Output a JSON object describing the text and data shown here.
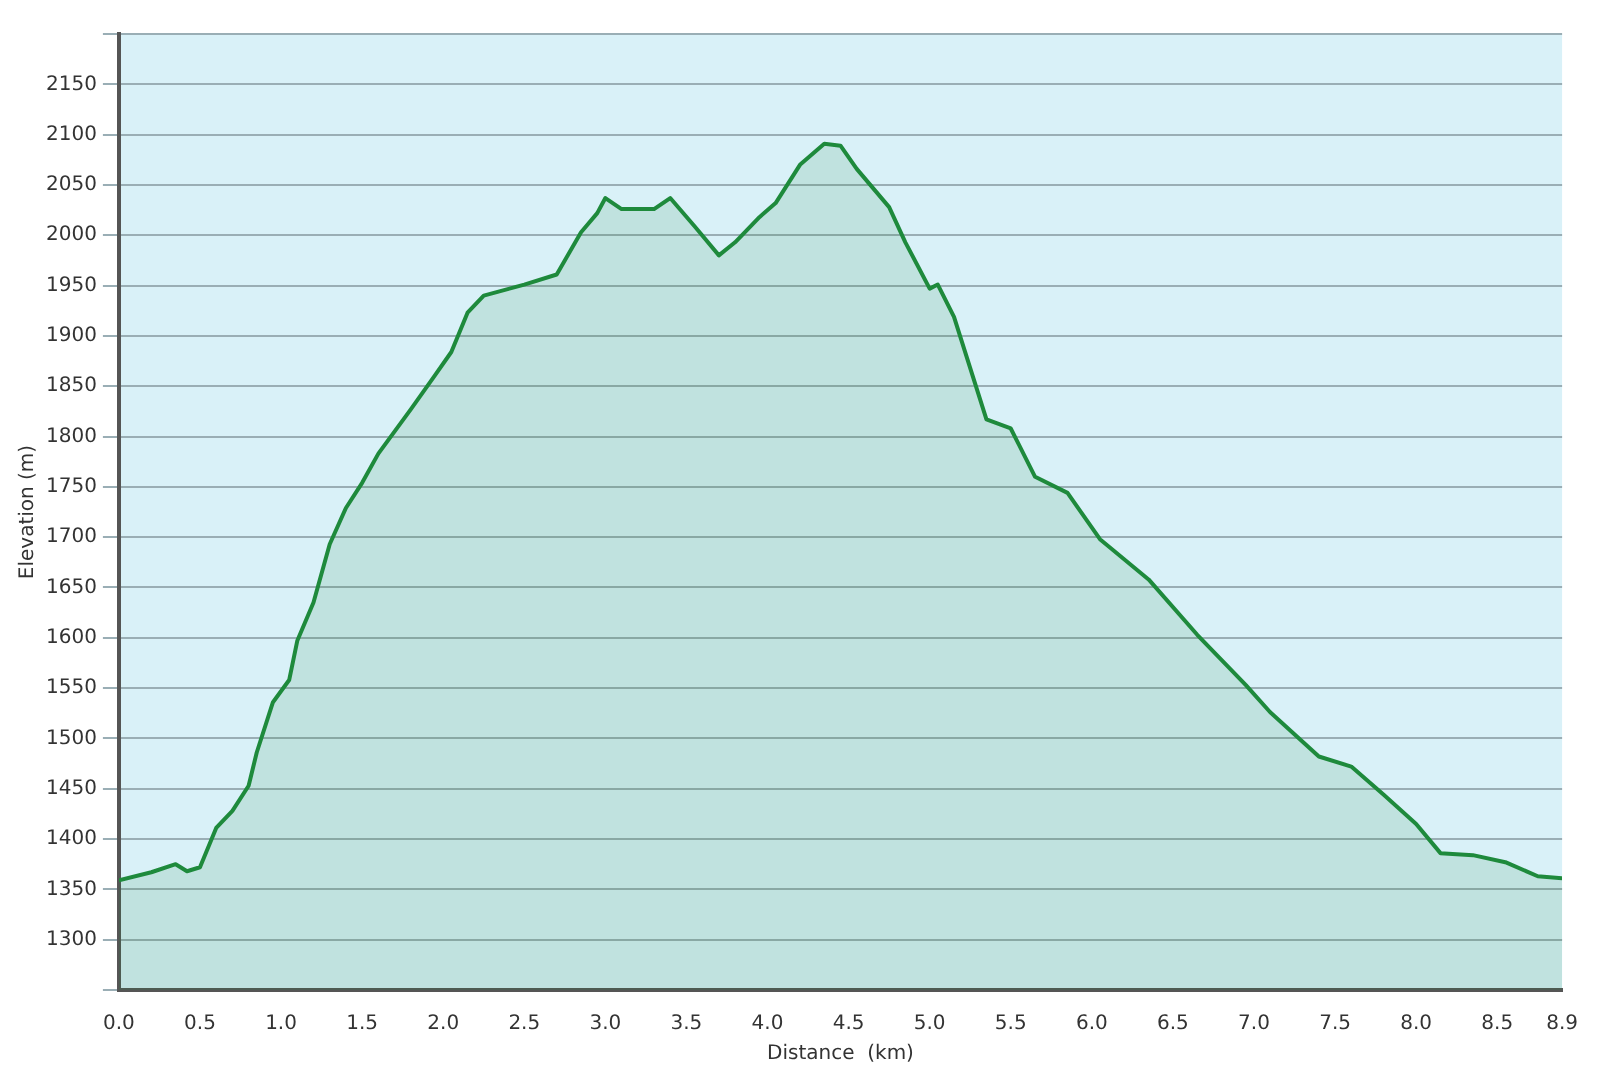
{
  "chart_data": {
    "type": "area",
    "xlabel": "Distance  (km)",
    "ylabel": "Elevation (m)",
    "grid": "y",
    "marker": "none",
    "line_style": "solid",
    "xlim": [
      0,
      8.9
    ],
    "ylim": [
      1250,
      2200
    ],
    "xticks": [
      {
        "value": 0,
        "label": "0.0"
      },
      0.5,
      {
        "value": 1,
        "label": "1.0"
      },
      1.5,
      {
        "value": 2,
        "label": "2.0"
      },
      2.5,
      {
        "value": 3,
        "label": "3.0"
      },
      3.5,
      {
        "value": 4,
        "label": "4.0"
      },
      4.5,
      {
        "value": 5,
        "label": "5.0"
      },
      5.5,
      {
        "value": 6,
        "label": "6.0"
      },
      6.5,
      {
        "value": 7,
        "label": "7.0"
      },
      7.5,
      {
        "value": 8,
        "label": "8.0"
      },
      8.5,
      8.9
    ],
    "yticks": [
      {
        "value": 1250,
        "label": null
      },
      1300,
      1350,
      1400,
      1450,
      1500,
      1550,
      1600,
      1650,
      1700,
      1750,
      1800,
      1850,
      1900,
      1950,
      2000,
      2050,
      2100,
      2150,
      {
        "value": 2200,
        "label": null
      }
    ],
    "x": [
      0,
      0.2,
      0.35,
      0.42,
      0.5,
      0.6,
      0.7,
      0.8,
      0.85,
      0.95,
      1.05,
      1.1,
      1.2,
      1.3,
      1.4,
      1.5,
      1.6,
      1.8,
      1.95,
      2.05,
      2.15,
      2.25,
      2.5,
      2.7,
      2.85,
      2.95,
      3.0,
      3.1,
      3.3,
      3.4,
      3.55,
      3.7,
      3.8,
      3.95,
      4.05,
      4.2,
      4.35,
      4.45,
      4.55,
      4.75,
      4.85,
      5.0,
      5.05,
      5.15,
      5.35,
      5.5,
      5.65,
      5.85,
      6.05,
      6.35,
      6.65,
      6.95,
      7.1,
      7.4,
      7.6,
      7.8,
      8.0,
      8.15,
      8.35,
      8.55,
      8.75,
      8.9
    ],
    "series": [
      {
        "color": "#1e8a3c",
        "values": [
          1359,
          1367,
          1375,
          1368,
          1372,
          1411,
          1428,
          1453,
          1486,
          1536,
          1558,
          1597,
          1635,
          1693,
          1729,
          1754,
          1783,
          1827,
          1861,
          1884,
          1923,
          1940,
          1951,
          1961,
          2003,
          2022,
          2037,
          2026,
          2026,
          2037,
          2009,
          1980,
          1993,
          2018,
          2032,
          2070,
          2091,
          2089,
          2066,
          2028,
          1993,
          1947,
          1951,
          1919,
          1817,
          1808,
          1760,
          1744,
          1698,
          1658,
          1603,
          1553,
          1526,
          1482,
          1472,
          1444,
          1415,
          1386,
          1384,
          1377,
          1363,
          1361
        ]
      }
    ]
  }
}
